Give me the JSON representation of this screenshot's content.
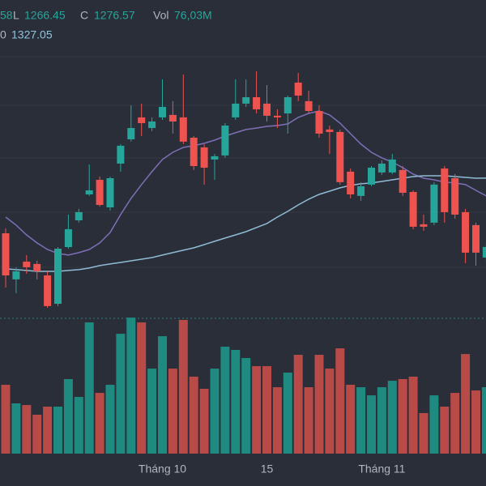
{
  "chart_data": {
    "type": "candlestick",
    "legend": {
      "line1": [
        "58",
        "L",
        "1266.45",
        "C",
        "1276.57",
        "Vol",
        "76,03M"
      ],
      "line2": [
        "0",
        "1327.05"
      ]
    },
    "categories": [
      null,
      null,
      null,
      null,
      null,
      null,
      null,
      null,
      null,
      null,
      null,
      null,
      null,
      null,
      null,
      "Tháng 10",
      null,
      null,
      null,
      null,
      null,
      null,
      null,
      null,
      null,
      "15",
      null,
      null,
      null,
      null,
      null,
      null,
      null,
      null,
      null,
      null,
      "Tháng 11",
      null,
      null,
      null,
      null,
      null,
      null,
      null,
      null,
      null,
      null
    ],
    "open": [
      1286.6,
      1252.8,
      1265.8,
      1264.1,
      1255.7,
      1234.9,
      1276.5,
      1296.1,
      1315.1,
      1325.8,
      1305.6,
      1337.7,
      1355.5,
      1371.6,
      1363.8,
      1371.6,
      1373.4,
      1371.6,
      1356.7,
      1349.6,
      1340.7,
      1343.7,
      1371.6,
      1381.7,
      1386.4,
      1381.7,
      1372.8,
      1374.5,
      1397.1,
      1383.5,
      1376.3,
      1362.7,
      1360.9,
      1331.8,
      1314.0,
      1322.3,
      1331.2,
      1331.2,
      1333.0,
      1316.9,
      1293.2,
      1294.4,
      1334.1,
      1327.0,
      1302.1,
      1292.6,
      1268.8
    ],
    "high": [
      1290.2,
      1261.7,
      1270.6,
      1266.4,
      1258.7,
      1276.5,
      1300.3,
      1304.5,
      1337.1,
      1328.2,
      1328.2,
      1352.0,
      1380.5,
      1381.7,
      1371.6,
      1399.5,
      1383.5,
      1403.0,
      1357.9,
      1352.0,
      1344.8,
      1367.4,
      1399.5,
      1399.5,
      1405.4,
      1395.3,
      1377.5,
      1387.6,
      1404.2,
      1391.2,
      1380.5,
      1365.6,
      1362.7,
      1334.1,
      1324.1,
      1335.9,
      1340.1,
      1344.8,
      1335.9,
      1318.1,
      1300.3,
      1324.1,
      1335.9,
      1330.0,
      1304.5,
      1294.4,
      1279.58
    ],
    "low": [
      1246.8,
      1242.7,
      1256.9,
      1252.8,
      1232.0,
      1233.2,
      1275.3,
      1294.4,
      1314.0,
      1306.2,
      1303.3,
      1331.8,
      1353.8,
      1357.9,
      1361.5,
      1369.8,
      1359.7,
      1352.0,
      1333.0,
      1322.3,
      1325.8,
      1341.9,
      1369.8,
      1379.3,
      1374.5,
      1368.6,
      1363.8,
      1359.7,
      1383.5,
      1374.5,
      1356.7,
      1344.8,
      1322.3,
      1312.2,
      1310.4,
      1321.1,
      1329.4,
      1330.0,
      1314.0,
      1289.6,
      1288.4,
      1292.6,
      1294.4,
      1297.3,
      1264.7,
      1262.9,
      1266.45
    ],
    "close": [
      1255.7,
      1258.7,
      1261.7,
      1258.7,
      1233.2,
      1275.3,
      1289.6,
      1302.1,
      1318.1,
      1307.4,
      1327.0,
      1350.8,
      1363.8,
      1367.4,
      1368.6,
      1379.3,
      1368.6,
      1353.8,
      1335.9,
      1334.7,
      1343.1,
      1365.6,
      1381.7,
      1386.4,
      1377.5,
      1372.8,
      1371.6,
      1386.4,
      1387.6,
      1376.3,
      1359.7,
      1360.9,
      1324.1,
      1315.1,
      1321.1,
      1334.7,
      1337.7,
      1340.7,
      1316.3,
      1291.4,
      1291.4,
      1322.3,
      1302.1,
      1300.3,
      1272.4,
      1272.4,
      1276.57
    ],
    "volume": [
      78.8,
      57.5,
      55.6,
      44.5,
      53.8,
      53.8,
      85.3,
      64.9,
      150.2,
      69.5,
      78.8,
      137.2,
      155.7,
      150.2,
      97.3,
      134.4,
      97.3,
      153.0,
      88.1,
      74.2,
      97.3,
      122.4,
      118.7,
      109.4,
      100.1,
      100.1,
      76.0,
      92.7,
      113.1,
      76.0,
      113.1,
      97.3,
      120.5,
      78.8,
      76.0,
      66.7,
      76.0,
      83.4,
      85.3,
      88.1,
      46.4,
      66.7,
      53.8,
      69.5,
      114.0,
      72.3,
      76.03
    ],
    "ma": [
      {
        "color": "#7e6fb8",
        "values": [
          1298.5,
          1292.6,
          1285.4,
          1279.5,
          1274.7,
          1271.8,
          1270.6,
          1272.4,
          1274.7,
          1279.5,
          1287.2,
          1300.3,
          1312.2,
          1322.3,
          1331.8,
          1340.7,
          1346.0,
          1349.6,
          1350.8,
          1352.6,
          1354.9,
          1357.9,
          1360.3,
          1362.7,
          1363.8,
          1365.0,
          1365.6,
          1366.8,
          1371.6,
          1374.5,
          1376.3,
          1373.4,
          1367.4,
          1359.7,
          1352.0,
          1346.0,
          1341.9,
          1338.9,
          1334.7,
          1330.0,
          1327.0,
          1325.8,
          1324.1,
          1323.5,
          1322.3,
          1318.1,
          1314.0
        ]
      },
      {
        "color": "#8fbcd4",
        "values": [
          1260.5,
          1259.9,
          1259.3,
          1258.7,
          1258.7,
          1258.7,
          1259.3,
          1259.9,
          1261.1,
          1262.9,
          1264.1,
          1265.2,
          1266.4,
          1267.6,
          1268.8,
          1270.6,
          1272.4,
          1274.2,
          1275.9,
          1278.3,
          1280.7,
          1283.1,
          1285.4,
          1287.8,
          1290.8,
          1293.8,
          1298.5,
          1302.7,
          1307.4,
          1311.6,
          1315.1,
          1317.5,
          1319.9,
          1321.7,
          1322.9,
          1323.5,
          1324.6,
          1325.8,
          1327.0,
          1328.2,
          1328.8,
          1328.8,
          1328.8,
          1328.2,
          1327.6,
          1327.0,
          1327.05
        ]
      }
    ],
    "up_color": "#26a69a",
    "down_color": "#ef5350",
    "volume_up_color": "#1f8a7f",
    "volume_down_color": "#b84a48",
    "ylim": [
      1226.0,
      1457.7
    ],
    "volume_lim": [
      0,
      166.9
    ]
  }
}
